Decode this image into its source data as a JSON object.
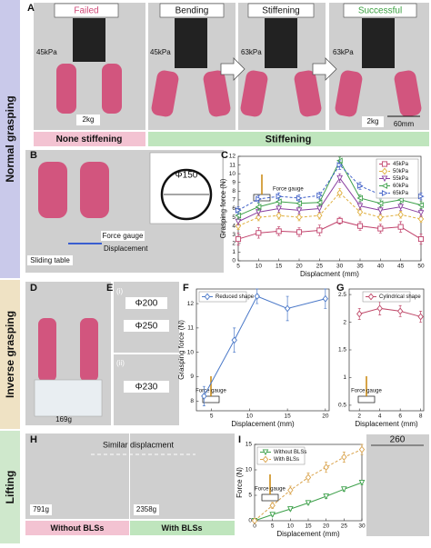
{
  "sections": [
    "Normal grasping",
    "Inverse grasping",
    "Lifting"
  ],
  "panel_labels": [
    "A",
    "B",
    "C",
    "D",
    "E",
    "F",
    "G",
    "H",
    "I"
  ],
  "panel_a": {
    "labels": [
      "Failed",
      "Bending",
      "Stiffening",
      "Successful"
    ],
    "pressures": [
      "45kPa",
      "45kPa",
      "63kPa",
      "63kPa"
    ],
    "loads": [
      "2kg",
      "2kg"
    ],
    "scale": "60mm",
    "captions": [
      "None stiffening",
      "Stiffening"
    ]
  },
  "panel_b": {
    "diameter": "Φ150",
    "gauge": "Force gauge",
    "motion": "Displacement",
    "table": "Sliding table"
  },
  "panel_d": {
    "load": "169g"
  },
  "panel_e": {
    "parts": [
      "(i)",
      "(ii)"
    ],
    "diameters": [
      "Φ200",
      "Φ250",
      "Φ230"
    ]
  },
  "panel_h": {
    "note": "Similar displacment",
    "loads": [
      "791g",
      "2358g"
    ],
    "captions": [
      "Without BLSs",
      "With BLSs"
    ]
  },
  "panel_i_photo": {
    "dimension": "260"
  },
  "chart_data": [
    {
      "type": "line",
      "xlabel": "Displacment (mm)",
      "ylabel": "Grasping force (N)",
      "annotation": "Force gauge",
      "x": [
        5,
        10,
        15,
        20,
        25,
        30,
        35,
        40,
        45,
        50
      ],
      "xlim": [
        5,
        50
      ],
      "xticks": [
        5,
        10,
        15,
        20,
        25,
        30,
        35,
        40,
        45,
        50
      ],
      "ylim": [
        0,
        12
      ],
      "yticks": [
        0,
        1,
        2,
        3,
        4,
        5,
        6,
        7,
        8,
        9,
        10,
        11,
        12
      ],
      "legend": "upper right",
      "grid": false,
      "series": [
        {
          "name": "45kPa",
          "color": "#c0406a",
          "marker": "square",
          "dashed": false,
          "values": [
            2.5,
            3.2,
            3.4,
            3.3,
            3.5,
            4.6,
            4.0,
            3.7,
            3.9,
            2.5
          ],
          "errors": [
            0.7,
            0.6,
            0.5,
            0.5,
            0.6,
            0.4,
            0.5,
            0.5,
            0.6,
            0.6
          ]
        },
        {
          "name": "50kPa",
          "color": "#e0b040",
          "marker": "diamond",
          "dashed": true,
          "values": [
            4.0,
            5.0,
            5.2,
            5.0,
            5.2,
            7.8,
            5.6,
            5.0,
            5.3,
            4.8
          ],
          "errors": [
            0.4,
            0.4,
            0.4,
            0.4,
            0.4,
            0.5,
            0.4,
            0.4,
            0.4,
            0.4
          ]
        },
        {
          "name": "55kPa",
          "color": "#8a3fa0",
          "marker": "tri-down",
          "dashed": false,
          "values": [
            4.5,
            5.6,
            6.0,
            5.8,
            6.0,
            9.5,
            6.3,
            5.8,
            6.2,
            5.5
          ],
          "errors": [
            0.4,
            0.4,
            0.4,
            0.4,
            0.4,
            0.5,
            0.4,
            0.4,
            0.4,
            0.4
          ]
        },
        {
          "name": "60kPa",
          "color": "#3da04a",
          "marker": "tri-left",
          "dashed": false,
          "values": [
            5.2,
            6.2,
            6.8,
            6.6,
            6.7,
            11.5,
            7.2,
            6.6,
            7.0,
            6.4
          ],
          "errors": [
            0.4,
            0.4,
            0.4,
            0.4,
            0.4,
            0.4,
            0.4,
            0.4,
            0.4,
            0.4
          ]
        },
        {
          "name": "65kPa",
          "color": "#4060c8",
          "marker": "tri-right",
          "dashed": true,
          "values": [
            5.8,
            7.1,
            7.4,
            7.2,
            7.5,
            11.0,
            8.6,
            7.6,
            8.5,
            7.4
          ],
          "errors": [
            0.4,
            0.4,
            0.4,
            0.4,
            0.4,
            0.5,
            0.4,
            0.4,
            0.4,
            0.4
          ]
        }
      ]
    },
    {
      "type": "line",
      "xlabel": "Displacement (mm)",
      "ylabel": "Grasping force (N)",
      "annotation": "Force gauge",
      "x": [
        4,
        8,
        11,
        15,
        20
      ],
      "xlim": [
        3,
        20.5
      ],
      "xticks": [
        5,
        10,
        15,
        20
      ],
      "ylim": [
        7.6,
        12.6
      ],
      "yticks": [
        8,
        9,
        10,
        11,
        12
      ],
      "legend": "upper left",
      "grid": false,
      "series": [
        {
          "name": "Reduced shape",
          "color": "#4a78c8",
          "marker": "diamond",
          "dashed": false,
          "values": [
            8.2,
            10.5,
            12.3,
            11.8,
            12.2
          ],
          "errors": [
            0.4,
            0.5,
            0.3,
            0.5,
            0.4
          ]
        }
      ]
    },
    {
      "type": "line",
      "xlabel": "Displacement (mm)",
      "ylabel": null,
      "annotation": "Force gauge",
      "x": [
        2,
        4,
        6,
        8
      ],
      "xlim": [
        1,
        8.3
      ],
      "xticks": [
        2,
        4,
        6,
        8
      ],
      "ylim": [
        0.4,
        2.6
      ],
      "yticks": [
        0.5,
        1,
        1.5,
        2,
        2.5
      ],
      "legend": "upper center",
      "grid": false,
      "series": [
        {
          "name": "Cylindrical shape",
          "color": "#c04a6a",
          "marker": "diamond",
          "dashed": false,
          "values": [
            2.15,
            2.25,
            2.2,
            2.1
          ],
          "errors": [
            0.1,
            0.12,
            0.1,
            0.1
          ]
        }
      ]
    },
    {
      "type": "line",
      "xlabel": "Displacement (mm)",
      "ylabel": "Force (N)",
      "annotation": "Force gauge",
      "x": [
        0,
        5,
        10,
        15,
        20,
        25,
        30
      ],
      "xlim": [
        0,
        30
      ],
      "xticks": [
        0,
        5,
        10,
        15,
        20,
        25,
        30
      ],
      "ylim": [
        0,
        15
      ],
      "yticks": [
        0,
        5,
        10,
        15
      ],
      "legend": "upper left",
      "grid": false,
      "series": [
        {
          "name": "Without BLSs",
          "color": "#3da04a",
          "marker": "tri-down",
          "dashed": false,
          "values": [
            0,
            1.2,
            2.3,
            3.5,
            4.8,
            6.2,
            7.5
          ],
          "errors": [
            0.1,
            0.3,
            0.3,
            0.3,
            0.4,
            0.4,
            0.4
          ]
        },
        {
          "name": "With BLSs",
          "color": "#d9a24a",
          "marker": "diamond",
          "dashed": true,
          "values": [
            0,
            3.0,
            6.0,
            8.5,
            10.5,
            12.5,
            14.0
          ],
          "errors": [
            0.2,
            0.6,
            0.8,
            0.9,
            1.0,
            1.0,
            1.0
          ]
        }
      ]
    }
  ]
}
